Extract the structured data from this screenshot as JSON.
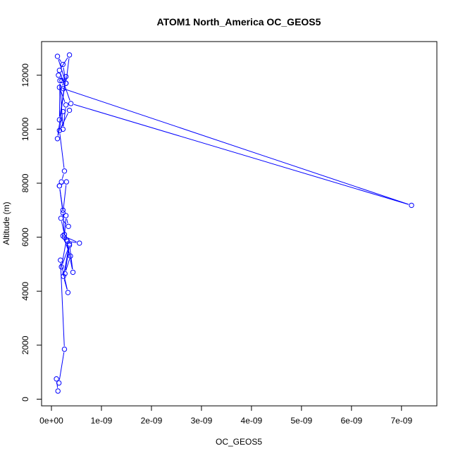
{
  "chart_data": {
    "type": "line",
    "title": "ATOM1 North_America OC_GEOS5",
    "xlabel": "OC_GEOS5",
    "ylabel": "Altitude (m)",
    "xlim": [
      0,
      7.2e-09
    ],
    "ylim": [
      300,
      12750
    ],
    "x_ticks": [
      {
        "value": 0,
        "label": "0e+00"
      },
      {
        "value": 1e-09,
        "label": "1e-09"
      },
      {
        "value": 2e-09,
        "label": "2e-09"
      },
      {
        "value": 3e-09,
        "label": "3e-09"
      },
      {
        "value": 4e-09,
        "label": "4e-09"
      },
      {
        "value": 5e-09,
        "label": "5e-09"
      },
      {
        "value": 6e-09,
        "label": "6e-09"
      },
      {
        "value": 7e-09,
        "label": "7e-09"
      }
    ],
    "y_ticks": [
      {
        "value": 0,
        "label": "0"
      },
      {
        "value": 2000,
        "label": "2000"
      },
      {
        "value": 4000,
        "label": "4000"
      },
      {
        "value": 6000,
        "label": "6000"
      },
      {
        "value": 8000,
        "label": "8000"
      },
      {
        "value": 10000,
        "label": "10000"
      },
      {
        "value": 12000,
        "label": "12000"
      }
    ],
    "series": [
      {
        "color": "#0000ff",
        "marker": "open-circle",
        "x": [
          1.3e-10,
          1e-10,
          1.5e-10,
          2.6e-10,
          1.8e-10,
          3.3e-10,
          2.4e-10,
          3.6e-10,
          4.3e-10,
          3e-10,
          2e-10,
          3.6e-10,
          2.7e-10,
          3.8e-10,
          2.3e-10,
          5.6e-10,
          3.2e-10,
          2.6e-10,
          1.9e-10,
          3.4e-10,
          2.9e-10,
          2.6e-10,
          2.3e-10,
          1.6e-10,
          3e-10,
          2.3e-10,
          1.6e-10,
          2e-10,
          2.6e-10,
          1.6e-10,
          3.6e-10,
          2.3e-10,
          1.2e-10,
          2.9e-10,
          1.6e-10,
          1.7e-10,
          2.3e-10,
          2.9e-10,
          1.6e-10,
          7.2e-09,
          3.9e-10,
          1.6e-10,
          3.6e-10,
          2.9e-10,
          2.3e-10,
          1.2e-10,
          2.9e-10,
          1.4e-10,
          2.1e-10,
          2.4e-10
        ],
        "y": [
          300,
          750,
          600,
          1850,
          5150,
          3950,
          4550,
          5750,
          4700,
          5900,
          4900,
          5700,
          4650,
          5300,
          6050,
          5780,
          5850,
          6100,
          6700,
          6400,
          6800,
          6000,
          7000,
          7900,
          8050,
          6900,
          7900,
          8050,
          8450,
          9950,
          10700,
          10650,
          9650,
          11950,
          10350,
          11800,
          10000,
          10900,
          11550,
          7180,
          10950,
          12180,
          12750,
          11700,
          12400,
          12700,
          11700,
          12000,
          11800,
          11500
        ]
      }
    ]
  }
}
